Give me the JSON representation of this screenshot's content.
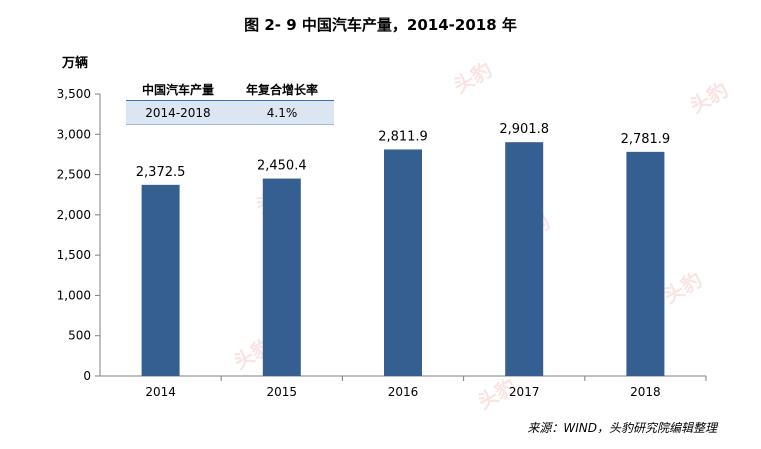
{
  "title": "图 2- 9  中国汽车产量，2014-2018 年",
  "unit_label": "万辆",
  "summary_table": {
    "headers": [
      "中国汽车产量",
      "年复合增长率"
    ],
    "row": [
      "2014-2018",
      "4.1%"
    ]
  },
  "source": "来源：WIND，头豹研究院编辑整理",
  "watermark": "头豹",
  "colors": {
    "bar": "#365f91",
    "axis": "#7f7f7f"
  },
  "chart_data": {
    "type": "bar",
    "categories": [
      "2014",
      "2015",
      "2016",
      "2017",
      "2018"
    ],
    "values": [
      2372.5,
      2450.4,
      2811.9,
      2901.8,
      2781.9
    ],
    "data_labels": [
      "2,372.5",
      "2,450.4",
      "2,811.9",
      "2,901.8",
      "2,781.9"
    ],
    "y_ticks": [
      "0",
      "500",
      "1,000",
      "1,500",
      "2,000",
      "2,500",
      "3,000",
      "3,500"
    ],
    "y_tick_values": [
      0,
      500,
      1000,
      1500,
      2000,
      2500,
      3000,
      3500
    ],
    "ylim": [
      0,
      3500
    ],
    "grid": false,
    "title": "图 2- 9  中国汽车产量，2014-2018 年",
    "ylabel": "万辆",
    "xlabel": ""
  }
}
